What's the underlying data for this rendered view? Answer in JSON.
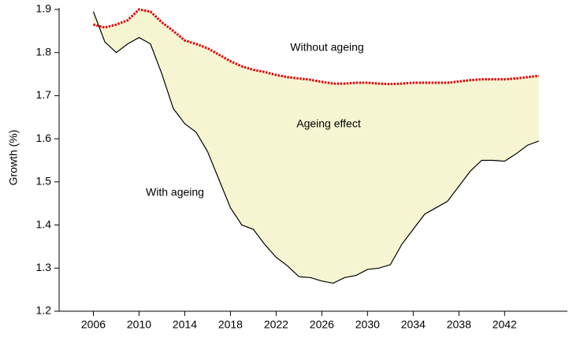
{
  "chart_data": {
    "type": "area_between",
    "ylabel": "Growth (%)",
    "annotations": [
      "Without ageing",
      "Ageing effect",
      "With ageing"
    ],
    "x": [
      2006,
      2007,
      2008,
      2009,
      2010,
      2011,
      2012,
      2013,
      2014,
      2015,
      2016,
      2017,
      2018,
      2019,
      2020,
      2021,
      2022,
      2023,
      2024,
      2025,
      2026,
      2027,
      2028,
      2029,
      2030,
      2031,
      2032,
      2033,
      2034,
      2035,
      2036,
      2037,
      2038,
      2039,
      2040,
      2041,
      2042,
      2043,
      2044,
      2045
    ],
    "series": [
      {
        "name": "With ageing",
        "color": "#000000",
        "style": "solid",
        "values": [
          1.895,
          1.825,
          1.8,
          1.82,
          1.835,
          1.82,
          1.75,
          1.67,
          1.635,
          1.615,
          1.57,
          1.505,
          1.44,
          1.4,
          1.39,
          1.355,
          1.325,
          1.305,
          1.28,
          1.278,
          1.27,
          1.265,
          1.278,
          1.283,
          1.297,
          1.3,
          1.308,
          1.355,
          1.39,
          1.425,
          1.44,
          1.455,
          1.49,
          1.525,
          1.55,
          1.55,
          1.548,
          1.565,
          1.585,
          1.595
        ]
      },
      {
        "name": "Without ageing",
        "color": "#e00000",
        "style": "dotted",
        "values": [
          1.865,
          1.858,
          1.865,
          1.875,
          1.9,
          1.895,
          1.87,
          1.85,
          1.828,
          1.82,
          1.81,
          1.795,
          1.78,
          1.768,
          1.76,
          1.755,
          1.748,
          1.743,
          1.74,
          1.737,
          1.732,
          1.728,
          1.728,
          1.73,
          1.73,
          1.728,
          1.727,
          1.728,
          1.73,
          1.73,
          1.73,
          1.73,
          1.733,
          1.736,
          1.738,
          1.738,
          1.738,
          1.74,
          1.743,
          1.746
        ]
      }
    ],
    "fill_color": "#f5f5d2",
    "xlim": [
      2003,
      2047.5
    ],
    "xticks": [
      2006,
      2010,
      2014,
      2018,
      2022,
      2026,
      2030,
      2034,
      2038,
      2042
    ],
    "ylim": [
      1.2,
      1.9
    ],
    "yticks": [
      1.2,
      1.3,
      1.4,
      1.5,
      1.6,
      1.7,
      1.8,
      1.9
    ]
  }
}
